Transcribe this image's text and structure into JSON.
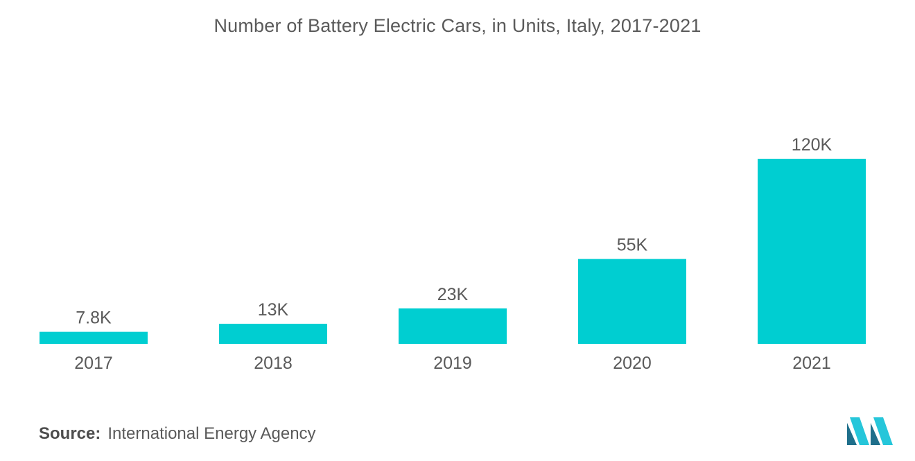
{
  "colors": {
    "bar": "#00ced1",
    "text": "#5a5a5a",
    "logo_dark": "#1f6f8b",
    "logo_light": "#26c6da"
  },
  "source": {
    "label": "Source:",
    "value": "International Energy Agency"
  },
  "chart_data": {
    "type": "bar",
    "title": "Number of Battery Electric Cars, in Units, Italy, 2017-2021",
    "xlabel": "",
    "ylabel": "",
    "categories": [
      "2017",
      "2018",
      "2019",
      "2020",
      "2021"
    ],
    "values": [
      7800,
      13000,
      23000,
      55000,
      120000
    ],
    "data_labels": [
      "7.8K",
      "13K",
      "23K",
      "55K",
      "120K"
    ],
    "ylim": [
      0,
      120000
    ],
    "grid": false,
    "legend": "none"
  }
}
